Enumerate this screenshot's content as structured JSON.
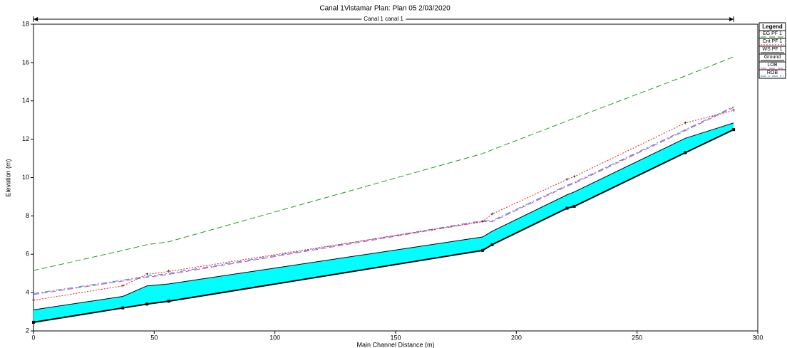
{
  "chart_data": {
    "type": "line",
    "title": "Canal 1Vistamar      Plan: Plan 05    2/03/2020",
    "subtitle": "Canal 1 canal 1",
    "x_label": "Main Channel Distance (m)",
    "y_label": "Elevation (m)",
    "legend_title": "Legend",
    "legend": "right",
    "x": [
      0,
      37,
      47,
      56,
      186,
      190,
      221,
      224,
      270,
      290
    ],
    "series": [
      {
        "name": "EG  PF 1",
        "color": "#2e9a2e",
        "dash": "8,4",
        "values": [
          5.15,
          6.2,
          6.5,
          6.65,
          11.25,
          11.45,
          12.95,
          13.1,
          15.3,
          16.3
        ]
      },
      {
        "name": "Crit  PF 1",
        "color": "#e02020",
        "dash": "2,2",
        "values": [
          3.6,
          4.35,
          4.95,
          5.1,
          7.7,
          8.1,
          9.9,
          10.05,
          12.85,
          13.5
        ]
      },
      {
        "name": "WS  PF 1",
        "color": "#000000",
        "dash": "",
        "values": [
          3.1,
          3.8,
          4.35,
          4.45,
          6.9,
          7.2,
          9.1,
          9.25,
          12.05,
          12.85
        ]
      },
      {
        "name": "Ground",
        "color": "#000000",
        "dash": "",
        "values": [
          2.45,
          3.2,
          3.4,
          3.55,
          6.2,
          6.5,
          8.4,
          8.5,
          11.3,
          12.5
        ]
      },
      {
        "name": "LOB",
        "color": "#d040d0",
        "dash": "8,4",
        "values": [
          3.9,
          4.6,
          4.8,
          4.95,
          7.7,
          7.7,
          9.55,
          9.7,
          12.45,
          13.65
        ]
      },
      {
        "name": "ROB",
        "color": "#3090b0",
        "dash": "8,3,2,3",
        "values": [
          3.95,
          4.65,
          4.85,
          5.0,
          7.75,
          7.75,
          9.6,
          9.75,
          12.5,
          13.7
        ]
      }
    ],
    "fill_color": "#00ffff",
    "xlim": [
      0,
      300
    ],
    "xticks": [
      0,
      50,
      100,
      150,
      200,
      250,
      300
    ],
    "ylim": [
      2,
      18
    ],
    "yticks": [
      2,
      4,
      6,
      8,
      10,
      12,
      14,
      16,
      18
    ]
  }
}
